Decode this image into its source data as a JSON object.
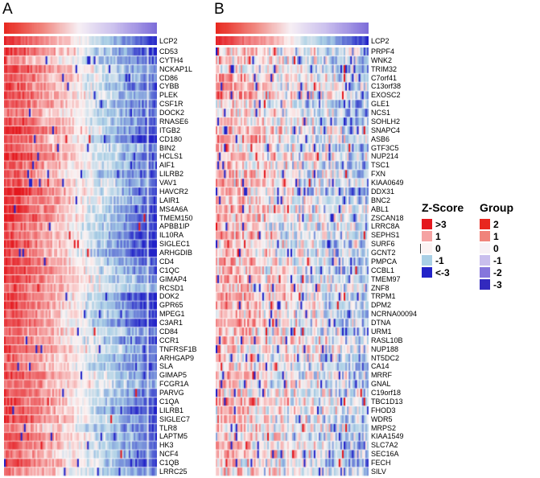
{
  "legends": {
    "zscore": {
      "title": "Z-Score",
      "entries": [
        {
          "label": ">3",
          "value": 3,
          "color": "#E4181E"
        },
        {
          "label": "1",
          "value": 1,
          "color": "#F5A3A3"
        },
        {
          "label": "0",
          "value": 0,
          "color": "#FBF3F3"
        },
        {
          "label": "-1",
          "value": -1,
          "color": "#A9CFE5"
        },
        {
          "label": "<-3",
          "value": -3,
          "color": "#2222C8"
        }
      ]
    },
    "group": {
      "title": "Group",
      "entries": [
        {
          "label": "2",
          "value": 2,
          "color": "#E8271E"
        },
        {
          "label": "1",
          "value": 1,
          "color": "#F0837B"
        },
        {
          "label": "0",
          "value": 0,
          "color": "#F7F0F5"
        },
        {
          "label": "-1",
          "value": -1,
          "color": "#C9BEED"
        },
        {
          "label": "-2",
          "value": -2,
          "color": "#8676DC"
        },
        {
          "label": "-3",
          "value": -3,
          "color": "#3229BE"
        }
      ]
    }
  },
  "chart_data": [
    {
      "type": "heatmap",
      "panel": "A",
      "x": "samples (unlabeled columns, ordered by LCP2 expression)",
      "n_columns": 92,
      "rows": [
        "LCP2",
        "CD53",
        "CYTH4",
        "NCKAP1L",
        "CD86",
        "CYBB",
        "PLEK",
        "CSF1R",
        "DOCK2",
        "RNASE6",
        "ITGB2",
        "CD180",
        "BIN2",
        "HCLS1",
        "AIF1",
        "LILRB2",
        "VAV1",
        "HAVCR2",
        "LAIR1",
        "MS4A6A",
        "TMEM150",
        "APBB1IP",
        "IL10RA",
        "SIGLEC1",
        "ARHGDIB",
        "CD4",
        "C1QC",
        "GIMAP4",
        "RCSD1",
        "DOK2",
        "GPR65",
        "MPEG1",
        "C3AR1",
        "CD84",
        "CCR1",
        "TNFRSF1B",
        "ARHGAP9",
        "SLA",
        "GIMAP5",
        "FCGR1A",
        "PARVG",
        "C1QA",
        "LILRB1",
        "SIGLEC7",
        "TLR8",
        "LAPTM5",
        "HK3",
        "NCF4",
        "C1QB",
        "LRRC25"
      ],
      "annotation": {
        "name": "Group",
        "from": 2,
        "to": -2.1
      },
      "values_estimated": true,
      "pattern": {
        "left_z": 2.4,
        "right_z": -2.4,
        "noise": 1.0,
        "low_outlier_p": 0.015,
        "high_outlier_p": 0.004,
        "col_white_p": 0.03,
        "seed": 11
      },
      "lcp2_pattern": {
        "left_z": 2.8,
        "right_z": -2.8,
        "noise": 0.5,
        "seed": 5
      }
    },
    {
      "type": "heatmap",
      "panel": "B",
      "x": "samples (unlabeled columns, ordered by LCP2 expression)",
      "n_columns": 92,
      "rows": [
        "LCP2",
        "PRPF4",
        "WNK2",
        "TRIM32",
        "C7orf41",
        "C13orf38",
        "EXOSC2",
        "GLE1",
        "NCS1",
        "SOHLH2",
        "SNAPC4",
        "ASB6",
        "GTF3C5",
        "NUP214",
        "TSC1",
        "FXN",
        "KIAA0649",
        "DDX31",
        "BNC2",
        "ABL1",
        "ZSCAN18",
        "LRRC8A",
        "SEPHS1",
        "SURF6",
        "GCNT2",
        "PMPCA",
        "CCBL1",
        "TMEM97",
        "ZNF8",
        "TRPM1",
        "DPM2",
        "NCRNA00094",
        "DTNA",
        "URM1",
        "RASL10B",
        "NUP188",
        "NT5DC2",
        "CA14",
        "MRRF",
        "GNAL",
        "C19orf18",
        "TBC1D13",
        "FHOD3",
        "WDR5",
        "MRPS2",
        "KIAA1549",
        "SLC7A2",
        "SEC16A",
        "FECH",
        "SILV"
      ],
      "annotation": {
        "name": "Group",
        "from": 2,
        "to": -2.1
      },
      "values_estimated": true,
      "pattern": {
        "left_z": 0.8,
        "right_z": -1.0,
        "noise": 1.9,
        "low_outlier_p": 0.035,
        "high_outlier_p": 0.015,
        "col_white_p": 0.02,
        "seed": 77
      },
      "lcp2_pattern": {
        "left_z": 2.8,
        "right_z": -2.8,
        "noise": 0.5,
        "seed": 9
      }
    }
  ]
}
